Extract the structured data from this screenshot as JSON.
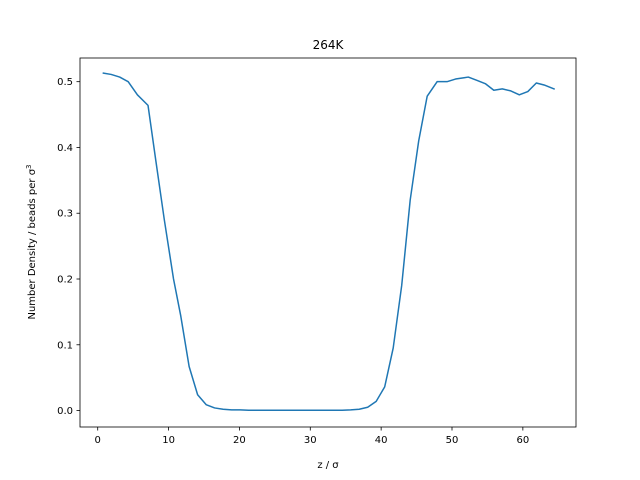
{
  "chart_data": {
    "type": "line",
    "title": "264K",
    "xlabel": "z / σ",
    "ylabel_main": "Number Density / beads per σ",
    "ylabel_sup": "3",
    "xlim": [
      -2.5,
      67.5
    ],
    "ylim": [
      -0.025,
      0.536
    ],
    "xticks": [
      0,
      10,
      20,
      30,
      40,
      50,
      60
    ],
    "yticks": [
      0.0,
      0.1,
      0.2,
      0.3,
      0.4,
      0.5
    ],
    "ytick_labels": [
      "0.0",
      "0.1",
      "0.2",
      "0.3",
      "0.4",
      "0.5"
    ],
    "grid": false,
    "line_color": "#1f77b4",
    "series": [
      {
        "x": [
          0.8,
          1.9,
          3.1,
          4.3,
          5.6,
          7.1,
          8.2,
          9.4,
          10.7,
          11.7,
          12.9,
          14.1,
          15.3,
          16.5,
          17.7,
          18.9,
          20.1,
          21.3,
          22.5,
          23.7,
          24.9,
          26.1,
          27.3,
          28.5,
          29.7,
          30.9,
          32.1,
          33.3,
          34.5,
          35.7,
          36.9,
          38.1,
          39.3,
          40.5,
          41.7,
          42.9,
          44.1,
          45.3,
          46.5,
          47.9,
          49.3,
          50.5,
          51.7,
          52.3,
          53.5,
          54.7,
          55.9,
          57.1,
          58.3,
          59.5,
          60.7,
          61.9,
          63.0,
          64.4
        ],
        "y": [
          0.513,
          0.511,
          0.507,
          0.5,
          0.48,
          0.464,
          0.38,
          0.29,
          0.2,
          0.145,
          0.067,
          0.024,
          0.009,
          0.004,
          0.002,
          0.001,
          0.001,
          0.0005,
          0.0005,
          0.0005,
          0.0005,
          0.0005,
          0.0005,
          0.0005,
          0.0005,
          0.0005,
          0.0005,
          0.0005,
          0.0005,
          0.001,
          0.002,
          0.005,
          0.014,
          0.036,
          0.095,
          0.19,
          0.32,
          0.41,
          0.478,
          0.5,
          0.5,
          0.504,
          0.506,
          0.507,
          0.502,
          0.497,
          0.487,
          0.489,
          0.486,
          0.48,
          0.485,
          0.498,
          0.495,
          0.489
        ]
      }
    ]
  }
}
